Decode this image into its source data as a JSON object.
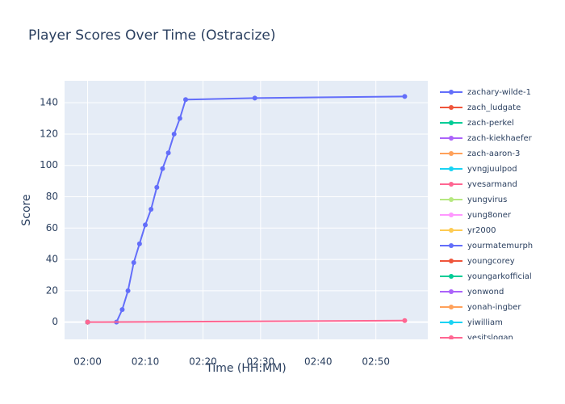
{
  "chart_data": {
    "type": "line",
    "title": "Player Scores Over Time (Ostracize)",
    "x_label": "Time (HH:MM)",
    "y_label": "Score",
    "xlim": [
      "01:56",
      "02:59"
    ],
    "xticks": [
      "02:00",
      "02:10",
      "02:20",
      "02:30",
      "02:40",
      "02:50"
    ],
    "ylim": [
      -11,
      154
    ],
    "yticks": [
      0,
      20,
      40,
      60,
      80,
      100,
      120,
      140
    ],
    "grid": true,
    "series": [
      {
        "name": "zachary-wilde-1",
        "color": "#636efa",
        "x": [
          "02:05",
          "02:06",
          "02:07",
          "02:08",
          "02:09",
          "02:10",
          "02:11",
          "02:12",
          "02:13",
          "02:14",
          "02:15",
          "02:16",
          "02:17",
          "02:29",
          "02:55"
        ],
        "values": [
          0,
          8,
          20,
          38,
          50,
          62,
          72,
          86,
          98,
          108,
          120,
          130,
          142,
          143,
          144
        ]
      },
      {
        "name": "zach_ludgate",
        "color": "#EF553B",
        "x": [
          "02:00"
        ],
        "values": [
          0
        ]
      },
      {
        "name": "zach-perkel",
        "color": "#00cc96",
        "x": [
          "02:00"
        ],
        "values": [
          0
        ]
      },
      {
        "name": "zach-kiekhaefer",
        "color": "#ab63fa",
        "x": [
          "02:00"
        ],
        "values": [
          0
        ]
      },
      {
        "name": "zach-aaron-3",
        "color": "#FFA15A",
        "x": [
          "02:00"
        ],
        "values": [
          0
        ]
      },
      {
        "name": "yvngjuulpod",
        "color": "#19d3f3",
        "x": [
          "02:00"
        ],
        "values": [
          0
        ]
      },
      {
        "name": "yvesarmand",
        "color": "#FF6692",
        "x": [
          "02:00"
        ],
        "values": [
          0
        ]
      },
      {
        "name": "yungvirus",
        "color": "#B6E880",
        "x": [
          "02:00"
        ],
        "values": [
          0
        ]
      },
      {
        "name": "yung8oner",
        "color": "#FF97FF",
        "x": [
          "02:00"
        ],
        "values": [
          0
        ]
      },
      {
        "name": "yr2000",
        "color": "#FECB52",
        "x": [
          "02:00"
        ],
        "values": [
          0
        ]
      },
      {
        "name": "yourmatemurph",
        "color": "#636efa",
        "x": [
          "02:00"
        ],
        "values": [
          0
        ]
      },
      {
        "name": "youngcorey",
        "color": "#EF553B",
        "x": [
          "02:00"
        ],
        "values": [
          0
        ]
      },
      {
        "name": "youngarkofficial",
        "color": "#00cc96",
        "x": [
          "02:00"
        ],
        "values": [
          0
        ]
      },
      {
        "name": "yonwond",
        "color": "#ab63fa",
        "x": [
          "02:00"
        ],
        "values": [
          0
        ]
      },
      {
        "name": "yonah-ingber",
        "color": "#FFA15A",
        "x": [
          "02:00"
        ],
        "values": [
          0
        ]
      },
      {
        "name": "yiwilliam",
        "color": "#19d3f3",
        "x": [
          "02:00"
        ],
        "values": [
          0
        ]
      },
      {
        "name": "yesitslogan",
        "color": "#FF6692",
        "x": [
          "02:00",
          "02:55"
        ],
        "values": [
          0,
          1
        ]
      }
    ]
  }
}
